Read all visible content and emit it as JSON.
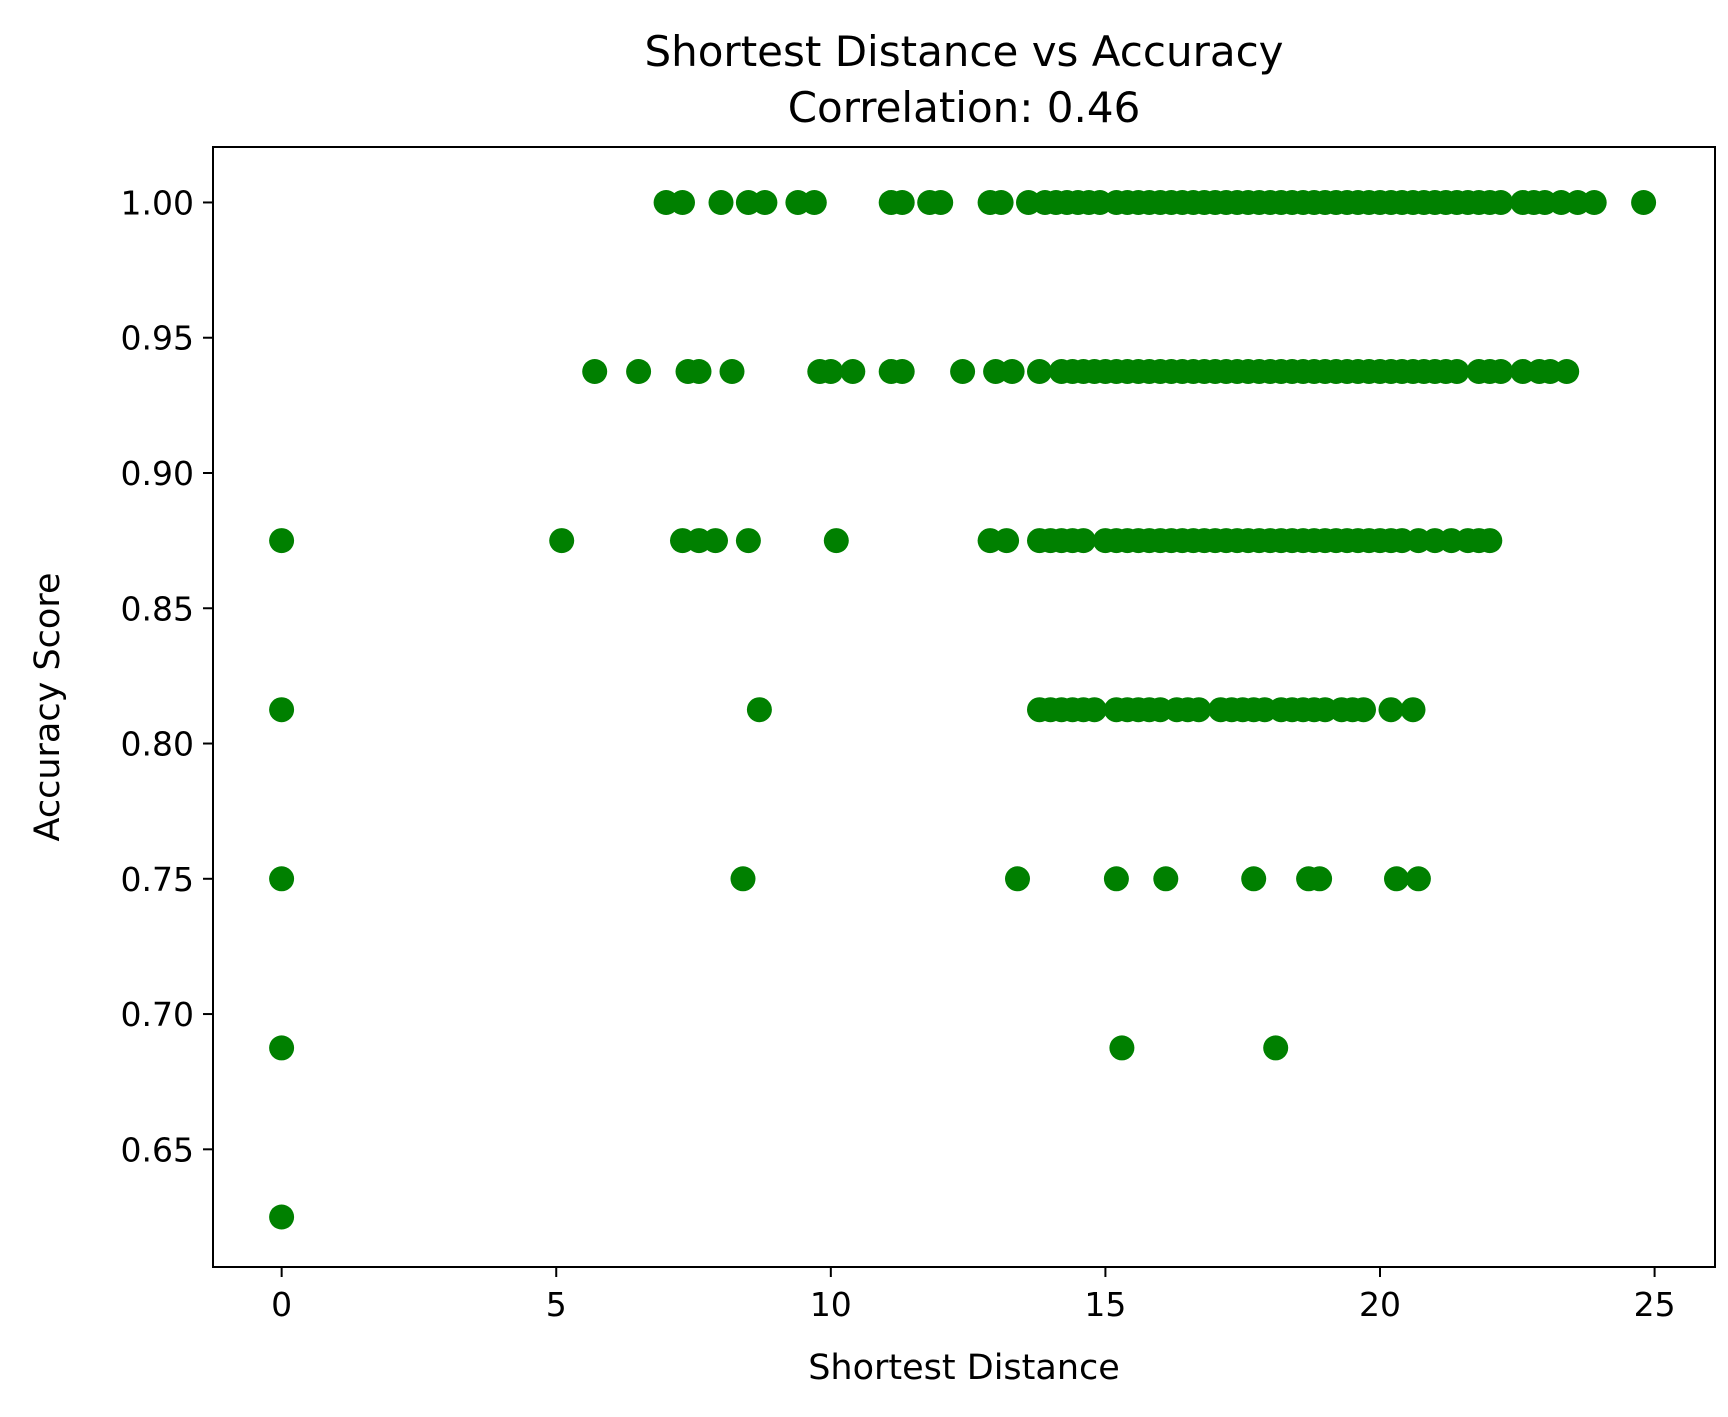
{
  "chart_data": {
    "type": "scatter",
    "title": "Shortest Distance vs Accuracy",
    "subtitle": "Correlation: 0.46",
    "xlabel": "Shortest Distance",
    "ylabel": "Accuracy Score",
    "xlim": [
      -1.25,
      26.1
    ],
    "ylim": [
      0.6065,
      1.0205
    ],
    "x_ticks": [
      0,
      5,
      10,
      15,
      20,
      25
    ],
    "x_tick_labels": [
      "0",
      "5",
      "10",
      "15",
      "20",
      "25"
    ],
    "y_ticks": [
      0.65,
      0.7,
      0.75,
      0.8,
      0.85,
      0.9,
      0.95,
      1.0
    ],
    "y_tick_labels": [
      "0.65",
      "0.70",
      "0.75",
      "0.80",
      "0.85",
      "0.90",
      "0.95",
      "1.00"
    ],
    "grid": false,
    "legend": "none",
    "marker_color": "#008000",
    "series": [
      {
        "points": [
          {
            "y": 1.0,
            "x": [
              7.0,
              7.3,
              8.0,
              8.5,
              8.8,
              9.4,
              9.7,
              11.1,
              11.3,
              11.8,
              12.0,
              12.9,
              13.1,
              13.6,
              13.9,
              14.1,
              14.3,
              14.5,
              14.7,
              14.9,
              15.2,
              15.4,
              15.6,
              15.8,
              16.0,
              16.2,
              16.4,
              16.6,
              16.8,
              17.0,
              17.2,
              17.4,
              17.6,
              17.8,
              18.0,
              18.2,
              18.4,
              18.6,
              18.8,
              19.0,
              19.2,
              19.4,
              19.6,
              19.8,
              20.0,
              20.2,
              20.4,
              20.6,
              20.8,
              21.0,
              21.2,
              21.4,
              21.6,
              21.8,
              22.0,
              22.2,
              22.6,
              22.8,
              23.0,
              23.3,
              23.6,
              23.9,
              24.8
            ]
          },
          {
            "y": 0.9375,
            "x": [
              5.7,
              6.5,
              7.4,
              7.6,
              8.2,
              9.8,
              10.0,
              10.4,
              11.1,
              11.3,
              12.4,
              13.0,
              13.3,
              13.8,
              14.2,
              14.4,
              14.6,
              14.8,
              15.0,
              15.2,
              15.4,
              15.6,
              15.8,
              16.0,
              16.2,
              16.4,
              16.6,
              16.8,
              17.0,
              17.2,
              17.4,
              17.6,
              17.8,
              18.0,
              18.2,
              18.4,
              18.6,
              18.8,
              19.0,
              19.2,
              19.4,
              19.6,
              19.8,
              20.0,
              20.2,
              20.4,
              20.6,
              20.8,
              21.0,
              21.2,
              21.4,
              21.8,
              22.0,
              22.2,
              22.6,
              22.9,
              23.1,
              23.4
            ]
          },
          {
            "y": 0.875,
            "x": [
              0.0,
              5.1,
              7.3,
              7.6,
              7.9,
              8.5,
              10.1,
              12.9,
              13.2,
              13.8,
              14.0,
              14.2,
              14.4,
              14.6,
              15.0,
              15.2,
              15.4,
              15.6,
              15.8,
              16.0,
              16.2,
              16.4,
              16.6,
              16.8,
              17.0,
              17.2,
              17.4,
              17.6,
              17.8,
              18.0,
              18.2,
              18.4,
              18.6,
              18.8,
              19.0,
              19.2,
              19.4,
              19.6,
              19.8,
              20.0,
              20.2,
              20.4,
              20.7,
              21.0,
              21.3,
              21.6,
              21.8,
              22.0
            ]
          },
          {
            "y": 0.8125,
            "x": [
              0.0,
              8.7,
              13.8,
              14.0,
              14.2,
              14.4,
              14.6,
              14.8,
              15.2,
              15.4,
              15.6,
              15.8,
              16.0,
              16.3,
              16.5,
              16.7,
              17.1,
              17.3,
              17.5,
              17.7,
              17.9,
              18.2,
              18.4,
              18.6,
              18.8,
              19.0,
              19.3,
              19.5,
              19.7,
              20.2,
              20.6
            ]
          },
          {
            "y": 0.75,
            "x": [
              0.0,
              8.4,
              13.4,
              15.2,
              16.1,
              17.7,
              18.7,
              18.9,
              20.3,
              20.7
            ]
          },
          {
            "y": 0.6875,
            "x": [
              0.0,
              15.3,
              18.1
            ]
          },
          {
            "y": 0.625,
            "x": [
              0.0
            ]
          }
        ]
      }
    ]
  }
}
